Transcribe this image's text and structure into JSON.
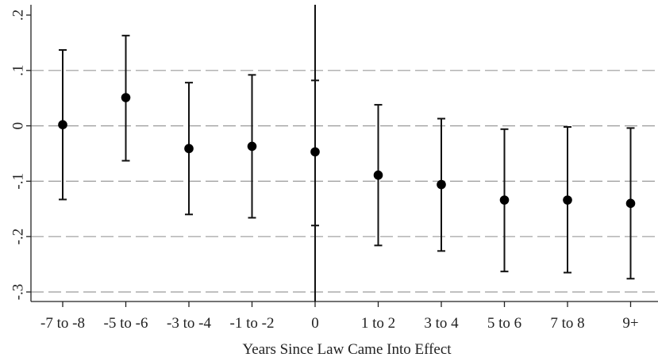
{
  "chart_data": {
    "type": "scatter",
    "xlabel": "Years Since Law Came Into Effect",
    "ylabel": "",
    "categories": [
      "-7 to -8",
      "-5 to -6",
      "-3 to -4",
      "-1 to -2",
      "0",
      "1 to 2",
      "3 to 4",
      "5 to 6",
      "7 to 8",
      "9+"
    ],
    "points": [
      {
        "category": "-7 to -8",
        "estimate": 0.002,
        "ci_low": -0.133,
        "ci_high": 0.137
      },
      {
        "category": "-5 to -6",
        "estimate": 0.051,
        "ci_low": -0.063,
        "ci_high": 0.163
      },
      {
        "category": "-3 to -4",
        "estimate": -0.041,
        "ci_low": -0.16,
        "ci_high": 0.078
      },
      {
        "category": "-1 to -2",
        "estimate": -0.037,
        "ci_low": -0.166,
        "ci_high": 0.092
      },
      {
        "category": "0",
        "estimate": -0.047,
        "ci_low": -0.18,
        "ci_high": 0.082
      },
      {
        "category": "1 to 2",
        "estimate": -0.089,
        "ci_low": -0.216,
        "ci_high": 0.038
      },
      {
        "category": "3 to 4",
        "estimate": -0.106,
        "ci_low": -0.226,
        "ci_high": 0.013
      },
      {
        "category": "5 to 6",
        "estimate": -0.134,
        "ci_low": -0.263,
        "ci_high": -0.006
      },
      {
        "category": "7 to 8",
        "estimate": -0.134,
        "ci_low": -0.265,
        "ci_high": -0.002
      },
      {
        "category": "9+",
        "estimate": -0.14,
        "ci_low": -0.276,
        "ci_high": -0.004
      }
    ],
    "yticks": [
      0.2,
      0.1,
      0,
      -0.1,
      -0.2,
      -0.3
    ],
    "ytick_labels": [
      ".2",
      ".1",
      "0",
      "-.1",
      "-.2",
      "-.3"
    ],
    "ylim": [
      -0.32,
      0.22
    ],
    "gridlines": [
      0.1,
      0,
      -0.1,
      -0.2,
      -0.3
    ],
    "reference_line_category": "0",
    "legend": "none"
  }
}
